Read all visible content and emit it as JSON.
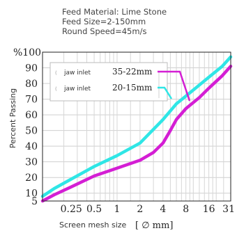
{
  "header": {
    "line1": "Feed Material: Lime Stone",
    "line2": "Feed Size=2-150mm",
    "line3": "Round Speed=45m/s"
  },
  "chart_data": {
    "type": "line",
    "ylabel": "Percent Passing",
    "ylabel_unit": "%",
    "xlabel": "Screen mesh size",
    "xlabel_unit": "[ ∅ mm]",
    "x_scale": "log",
    "xlim": [
      0.105,
      31
    ],
    "ylim": [
      5,
      100
    ],
    "x_ticks": [
      {
        "value": 0.25,
        "label": "0.25"
      },
      {
        "value": 0.5,
        "label": "0.5"
      },
      {
        "value": 1,
        "label": "1"
      },
      {
        "value": 2,
        "label": "2"
      },
      {
        "value": 4,
        "label": "4"
      },
      {
        "value": 8,
        "label": "8"
      },
      {
        "value": 16,
        "label": "16"
      },
      {
        "value": 31,
        "label": "31"
      }
    ],
    "y_ticks": [
      5,
      10,
      20,
      30,
      40,
      50,
      60,
      70,
      80,
      90,
      100
    ],
    "y_top_label": "%100",
    "grid": true,
    "legend_position": "top-left",
    "series": [
      {
        "name": "35-22mm",
        "inlet": "jaw inlet",
        "color": "#d41ed4",
        "x": [
          0.105,
          0.15,
          0.25,
          0.5,
          1,
          2,
          3,
          4,
          5,
          6,
          8,
          12,
          16,
          24,
          31
        ],
        "y": [
          5,
          9,
          14,
          21,
          26,
          31,
          36,
          42,
          50,
          57,
          64,
          71,
          77,
          85,
          91
        ]
      },
      {
        "name": "20-15mm",
        "inlet": "jaw inlet",
        "color": "#2fe6e6",
        "x": [
          0.105,
          0.15,
          0.25,
          0.5,
          1,
          2,
          4,
          6,
          8,
          12,
          16,
          24,
          31
        ],
        "y": [
          8,
          13,
          19,
          27,
          34,
          42,
          57,
          67,
          72,
          79,
          84,
          91,
          97
        ]
      }
    ]
  }
}
